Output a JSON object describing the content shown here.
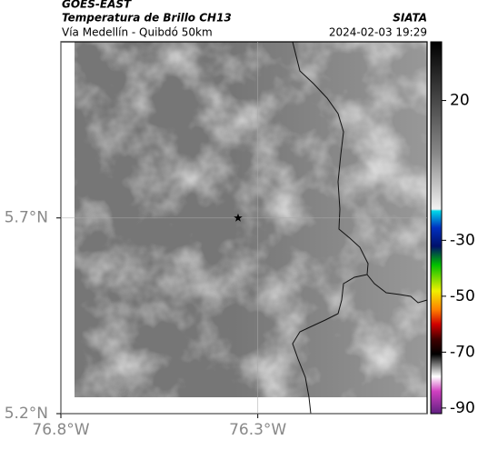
{
  "header": {
    "satellite": "GOES-EAST",
    "product": "Temperatura de Brillo CH13",
    "region": "Vía Medellín - Quibdó 50km",
    "source": "SIATA",
    "timestamp": "2024-02-03 19:29"
  },
  "map": {
    "xlim": [
      -76.8,
      -75.87
    ],
    "ylim": [
      5.2,
      6.15
    ],
    "xticks": [
      {
        "value": -76.8,
        "label": "76.8°W"
      },
      {
        "value": -76.3,
        "label": "76.3°W"
      }
    ],
    "yticks": [
      {
        "value": 5.2,
        "label": "5.2°N"
      },
      {
        "value": 5.7,
        "label": "5.7°N"
      }
    ],
    "station": {
      "lon": -76.35,
      "lat": 5.7
    }
  },
  "colorbar": {
    "clim": [
      -92,
      41
    ],
    "ticks": [
      20,
      -30,
      -50,
      -70,
      -90
    ]
  }
}
